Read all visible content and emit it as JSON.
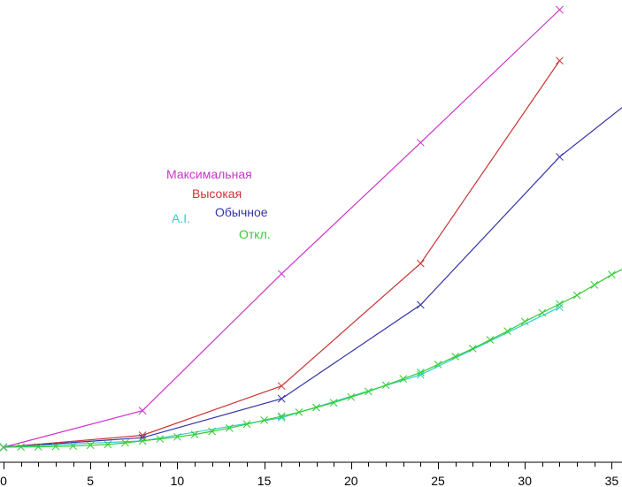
{
  "chart_data": {
    "type": "line",
    "title": "",
    "xlabel": "",
    "ylabel": "",
    "xlim": [
      0,
      36
    ],
    "ylim": [
      0,
      51
    ],
    "grid": false,
    "x_ticks": [
      0,
      5,
      10,
      15,
      20,
      25,
      30,
      35
    ],
    "legend": "center-left",
    "series": [
      {
        "name": "Максимальная",
        "color": "#cc33cc",
        "x": [
          0,
          8,
          16,
          24,
          32
        ],
        "y": [
          0.0,
          4.6,
          21.8,
          38.3,
          55.0
        ]
      },
      {
        "name": "Высокая",
        "color": "#cc3333",
        "x": [
          0,
          8,
          16,
          24,
          32
        ],
        "y": [
          0.0,
          1.5,
          7.7,
          23.1,
          48.6
        ]
      },
      {
        "name": "Обычное",
        "color": "#3333aa",
        "x": [
          0,
          8,
          16,
          24,
          32,
          36
        ],
        "y": [
          0.0,
          1.2,
          6.1,
          17.9,
          36.5,
          43.4
        ]
      },
      {
        "name": "A.I.",
        "color": "#33cccc",
        "x": [
          0,
          8,
          16,
          24,
          32
        ],
        "y": [
          0.0,
          0.8,
          3.7,
          9.1,
          17.6
        ]
      },
      {
        "name": "Откл.",
        "color": "#33cc33",
        "x": [
          0,
          1,
          2,
          3,
          4,
          5,
          6,
          7,
          8,
          9,
          10,
          11,
          12,
          13,
          14,
          15,
          16,
          17,
          18,
          19,
          20,
          21,
          22,
          23,
          24,
          25,
          26,
          27,
          28,
          29,
          30,
          31,
          32,
          33,
          34,
          35,
          36
        ],
        "y": [
          0.0,
          0.03,
          0.05,
          0.1,
          0.15,
          0.25,
          0.35,
          0.55,
          0.8,
          1.05,
          1.3,
          1.6,
          2.0,
          2.4,
          2.9,
          3.4,
          3.9,
          4.4,
          5.0,
          5.6,
          6.3,
          7.0,
          7.8,
          8.6,
          9.4,
          10.4,
          11.4,
          12.4,
          13.5,
          14.6,
          15.8,
          16.9,
          18.0,
          19.1,
          20.4,
          21.7,
          22.8
        ]
      }
    ]
  }
}
